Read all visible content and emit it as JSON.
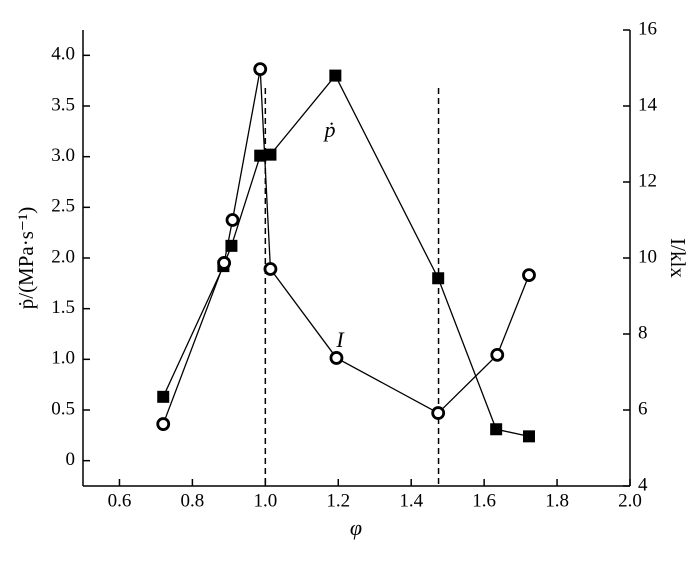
{
  "chart_data": {
    "type": "line",
    "x_label": "φ",
    "y_label": "ṗ/(MPa·s⁻¹)",
    "y2_label": "I/klx",
    "xlim": [
      0.5,
      2.0
    ],
    "xticks": [
      0.6,
      0.8,
      {
        "value": 1,
        "label": "1.0"
      },
      1.2,
      1.4,
      1.6,
      1.8,
      {
        "value": 2,
        "label": "2.0"
      }
    ],
    "ylim": [
      -0.25,
      4.25
    ],
    "yticks": [
      0,
      0.5,
      {
        "value": 1,
        "label": "1.0"
      },
      1.5,
      {
        "value": 2,
        "label": "2.0"
      },
      2.5,
      {
        "value": 3,
        "label": "3.0"
      },
      3.5,
      {
        "value": 4,
        "label": "4.0"
      }
    ],
    "y2lim": [
      4,
      16
    ],
    "y2ticks": [
      4,
      6,
      8,
      10,
      12,
      14,
      16
    ],
    "vlines": [
      1.0,
      1.475
    ],
    "series": [
      {
        "name": "ṗ",
        "color": "#000000",
        "marker": "square",
        "x": [
          0.72,
          0.885,
          0.907,
          0.986,
          1.014,
          1.192,
          1.474,
          1.633,
          1.723
        ],
        "values": [
          0.63,
          1.92,
          2.12,
          3.01,
          3.02,
          3.8,
          1.8,
          0.31,
          0.24
        ]
      },
      {
        "name": "I",
        "color": "#000000",
        "marker": "circle",
        "axis": "y2",
        "x": [
          0.72,
          0.887,
          0.91,
          0.986,
          1.014,
          1.195,
          1.474,
          1.636,
          1.723
        ],
        "values": [
          5.63,
          9.87,
          11.0,
          14.97,
          9.71,
          7.37,
          5.92,
          7.45,
          9.55
        ]
      }
    ]
  }
}
